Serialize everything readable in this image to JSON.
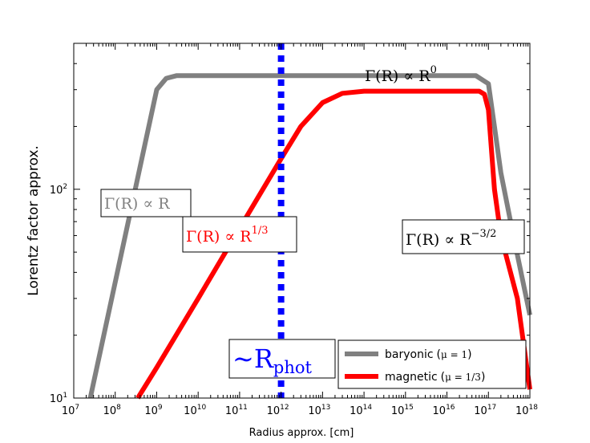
{
  "chart_data": {
    "type": "line",
    "title": "",
    "xlabel": "Radius approx. [cm]",
    "ylabel": "Lorentz factor approx.",
    "xscale": "log",
    "yscale": "log",
    "xlim": [
      10000000.0,
      1e+18
    ],
    "ylim": [
      10,
      500
    ],
    "x_ticks": [
      {
        "base": "10",
        "exp": "7",
        "value": 10000000.0
      },
      {
        "base": "10",
        "exp": "8",
        "value": 100000000.0
      },
      {
        "base": "10",
        "exp": "9",
        "value": 1000000000.0
      },
      {
        "base": "10",
        "exp": "10",
        "value": 10000000000.0
      },
      {
        "base": "10",
        "exp": "11",
        "value": 100000000000.0
      },
      {
        "base": "10",
        "exp": "12",
        "value": 1000000000000.0
      },
      {
        "base": "10",
        "exp": "13",
        "value": 10000000000000.0
      },
      {
        "base": "10",
        "exp": "14",
        "value": 100000000000000.0
      },
      {
        "base": "10",
        "exp": "15",
        "value": 1000000000000000.0
      },
      {
        "base": "10",
        "exp": "16",
        "value": 1e+16
      },
      {
        "base": "10",
        "exp": "17",
        "value": 1e+17
      },
      {
        "base": "10",
        "exp": "18",
        "value": 1e+18
      }
    ],
    "y_ticks": [
      {
        "base": "10",
        "exp": "1",
        "value": 10
      },
      {
        "base": "10",
        "exp": "2",
        "value": 100
      }
    ],
    "grid": false,
    "legend": {
      "position": "lower-right",
      "entries": [
        {
          "label": "baryonic",
          "mu": "μ = 1"
        },
        {
          "label": "magnetic",
          "mu": "μ = 1/3"
        }
      ]
    },
    "series": [
      {
        "label": "baryonic",
        "color": "#808080",
        "points": [
          [
            25000000.0,
            10
          ],
          [
            1000000000.0,
            300
          ],
          [
            1700000000.0,
            340
          ],
          [
            3000000000.0,
            350
          ],
          [
            5e+16,
            350
          ],
          [
            1e+17,
            320
          ],
          [
            1.4e+17,
            200
          ],
          [
            2e+17,
            120
          ],
          [
            4e+17,
            60
          ],
          [
            1e+18,
            25
          ]
        ]
      },
      {
        "label": "magnetic",
        "color": "#ff0000",
        "points": [
          [
            350000000.0,
            10
          ],
          [
            1000000000.0,
            14
          ],
          [
            10000000000.0,
            30
          ],
          [
            100000000000.0,
            65
          ],
          [
            1000000000000.0,
            140
          ],
          [
            3000000000000.0,
            200
          ],
          [
            10000000000000.0,
            260
          ],
          [
            30000000000000.0,
            288
          ],
          [
            100000000000000.0,
            295
          ],
          [
            6e+16,
            295
          ],
          [
            8e+16,
            285
          ],
          [
            1e+17,
            240
          ],
          [
            1.4e+17,
            100
          ],
          [
            2e+17,
            60
          ],
          [
            5e+17,
            30
          ],
          [
            1e+18,
            11
          ]
        ]
      }
    ],
    "vline": {
      "x": 1000000000000.0,
      "color": "#0000ff",
      "style": "dotted"
    },
    "annotations": [
      {
        "id": "gamma-r",
        "color": "#808080",
        "base": "Γ(R) ∝ R",
        "exp": "",
        "x": 85000000.0,
        "y": 98
      },
      {
        "id": "gamma-r-third",
        "color": "#ff0000",
        "base": "Γ(R) ∝ R",
        "exp": "1/3",
        "x": 4200000000.0,
        "y": 66
      },
      {
        "id": "gamma-r-zero",
        "color": "#000000",
        "base": "Γ(R) ∝ R",
        "exp": "0",
        "x": 130000000000000.0,
        "y": 420
      },
      {
        "id": "gamma-r-minus",
        "color": "#000000",
        "base": "Γ(R) ∝ R",
        "exp": "−3/2",
        "x": 1300000000000000.0,
        "y": 66
      },
      {
        "id": "r-phot",
        "color": "#0000ff",
        "base": "∼R",
        "sub": "phot"
      }
    ]
  }
}
